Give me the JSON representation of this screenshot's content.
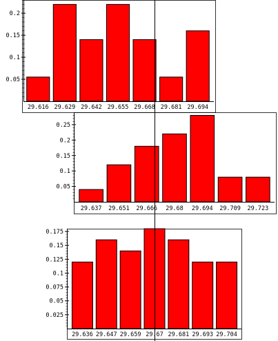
{
  "colors": {
    "bar_fill": "#ff0000",
    "bar_stroke": "#000000",
    "axis": "#000000",
    "background": "#ffffff"
  },
  "vertical_line": {
    "x_value": null
  },
  "chart_data": [
    {
      "type": "bar",
      "title": "",
      "xlabel": "",
      "ylabel": "",
      "categories": [
        "29.616",
        "29.629",
        "29.642",
        "29.655",
        "29.668",
        "29.681",
        "29.694"
      ],
      "values": [
        0.055,
        0.22,
        0.14,
        0.22,
        0.14,
        0.055,
        0.16
      ],
      "ylim": [
        0,
        0.23
      ],
      "yticks": [
        0.05,
        0.1,
        0.15,
        0.2
      ],
      "ytick_labels": [
        "0.05",
        "0.1",
        "0.15",
        "0.2"
      ],
      "grid": false,
      "legend": "none"
    },
    {
      "type": "bar",
      "title": "",
      "xlabel": "",
      "ylabel": "",
      "categories": [
        "29.637",
        "29.651",
        "29.666",
        "29.68",
        "29.694",
        "29.709",
        "29.723"
      ],
      "values": [
        0.04,
        0.12,
        0.18,
        0.22,
        0.28,
        0.08,
        0.08
      ],
      "ylim": [
        0,
        0.29
      ],
      "yticks": [
        0.05,
        0.1,
        0.15,
        0.2,
        0.25
      ],
      "ytick_labels": [
        "0.05",
        "0.1",
        "0.15",
        "0.2",
        "0.25"
      ],
      "grid": false,
      "legend": "none"
    },
    {
      "type": "bar",
      "title": "",
      "xlabel": "",
      "ylabel": "",
      "categories": [
        "29.636",
        "29.647",
        "29.659",
        "29.67",
        "29.681",
        "29.693",
        "29.704"
      ],
      "values": [
        0.12,
        0.16,
        0.14,
        0.18,
        0.16,
        0.12,
        0.12
      ],
      "ylim": [
        0,
        0.18
      ],
      "yticks": [
        0.025,
        0.05,
        0.075,
        0.1,
        0.125,
        0.15,
        0.175
      ],
      "ytick_labels": [
        "0.025",
        "0.05",
        "0.075",
        "0.1",
        "0.125",
        "0.15",
        "0.175"
      ],
      "grid": false,
      "legend": "none"
    }
  ]
}
